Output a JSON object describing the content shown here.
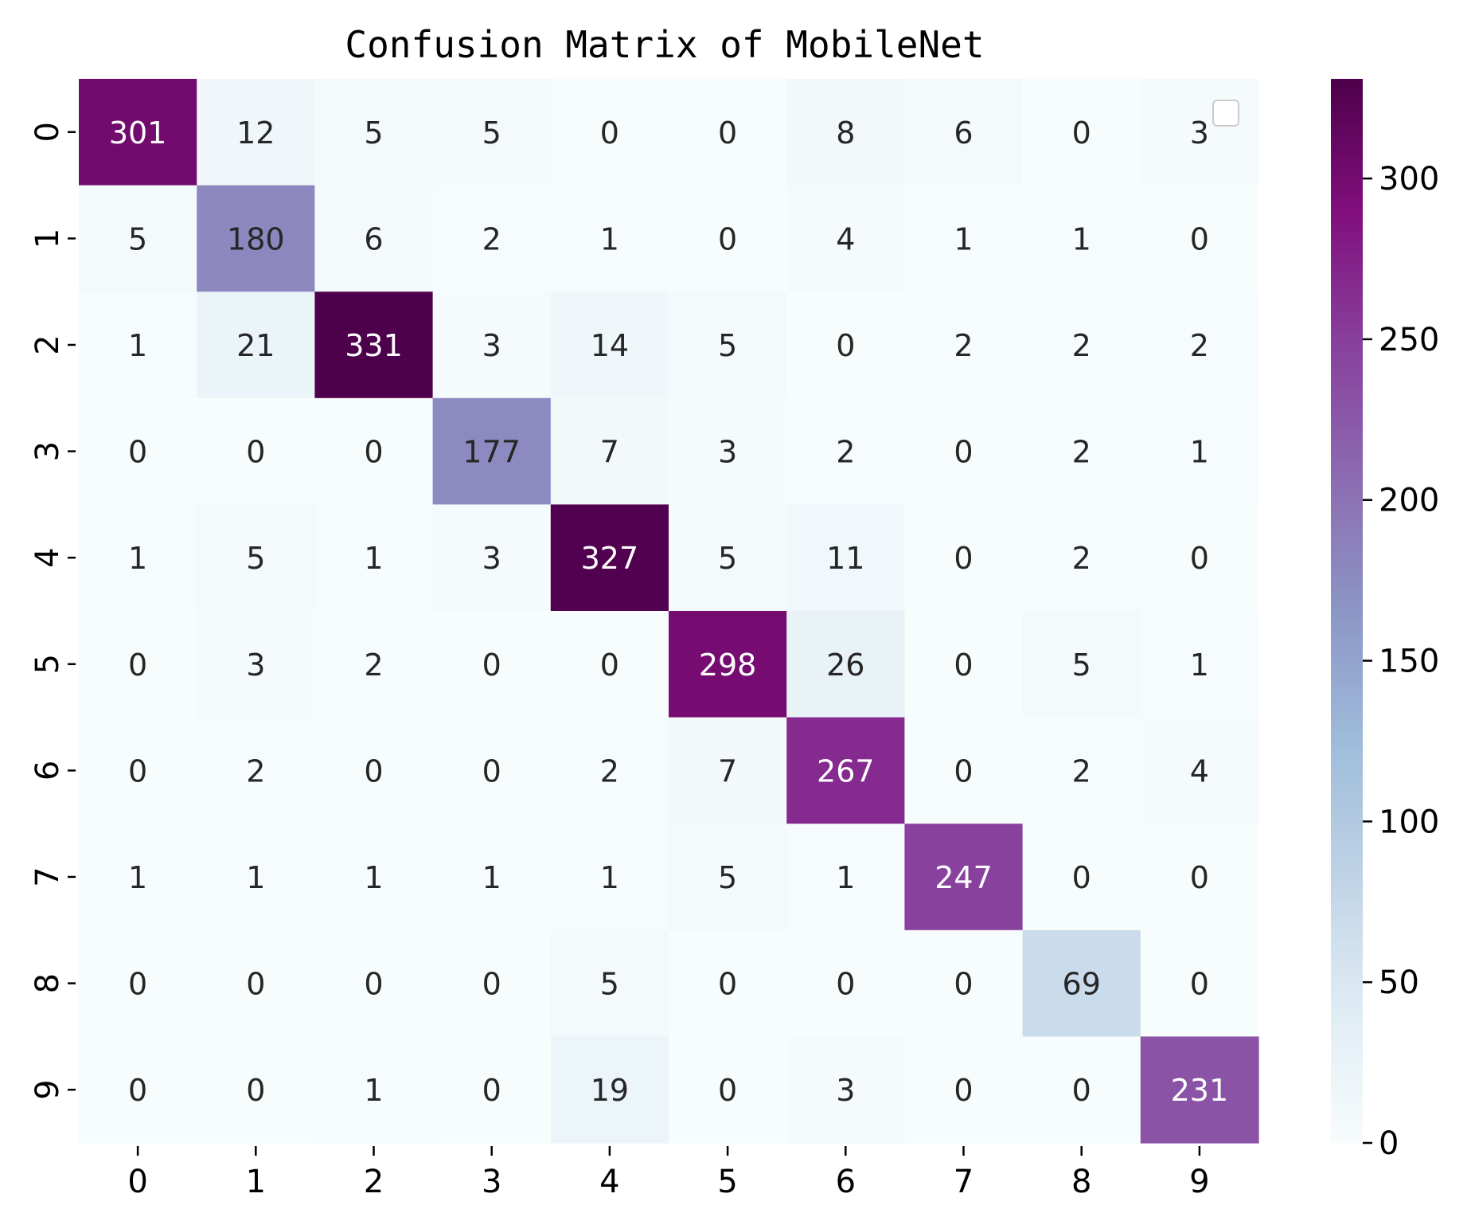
{
  "chart_data": {
    "type": "heatmap",
    "title": "Confusion Matrix of MobileNet",
    "x_tick_labels": [
      "0",
      "1",
      "2",
      "3",
      "4",
      "5",
      "6",
      "7",
      "8",
      "9"
    ],
    "y_tick_labels": [
      "0",
      "1",
      "2",
      "3",
      "4",
      "5",
      "6",
      "7",
      "8",
      "9"
    ],
    "matrix": [
      [
        301,
        12,
        5,
        5,
        0,
        0,
        8,
        6,
        0,
        3
      ],
      [
        5,
        180,
        6,
        2,
        1,
        0,
        4,
        1,
        1,
        0
      ],
      [
        1,
        21,
        331,
        3,
        14,
        5,
        0,
        2,
        2,
        2
      ],
      [
        0,
        0,
        0,
        177,
        7,
        3,
        2,
        0,
        2,
        1
      ],
      [
        1,
        5,
        1,
        3,
        327,
        5,
        11,
        0,
        2,
        0
      ],
      [
        0,
        3,
        2,
        0,
        0,
        298,
        26,
        0,
        5,
        1
      ],
      [
        0,
        2,
        0,
        0,
        2,
        7,
        267,
        0,
        2,
        4
      ],
      [
        1,
        1,
        1,
        1,
        1,
        5,
        1,
        247,
        0,
        0
      ],
      [
        0,
        0,
        0,
        0,
        5,
        0,
        0,
        0,
        69,
        0
      ],
      [
        0,
        0,
        1,
        0,
        19,
        0,
        3,
        0,
        0,
        231
      ]
    ],
    "colormap": "BuPu",
    "colormap_stops": [
      "#f7fcfd",
      "#e0ecf4",
      "#bfd3e6",
      "#9ebcda",
      "#8c96c6",
      "#8c6bb1",
      "#88419d",
      "#810f7c",
      "#4d004b"
    ],
    "colorbar": {
      "vmin": 0,
      "vmax": 331,
      "ticks": [
        0,
        50,
        100,
        150,
        200,
        250,
        300
      ]
    },
    "legend": "empty legend box, top-right corner"
  }
}
